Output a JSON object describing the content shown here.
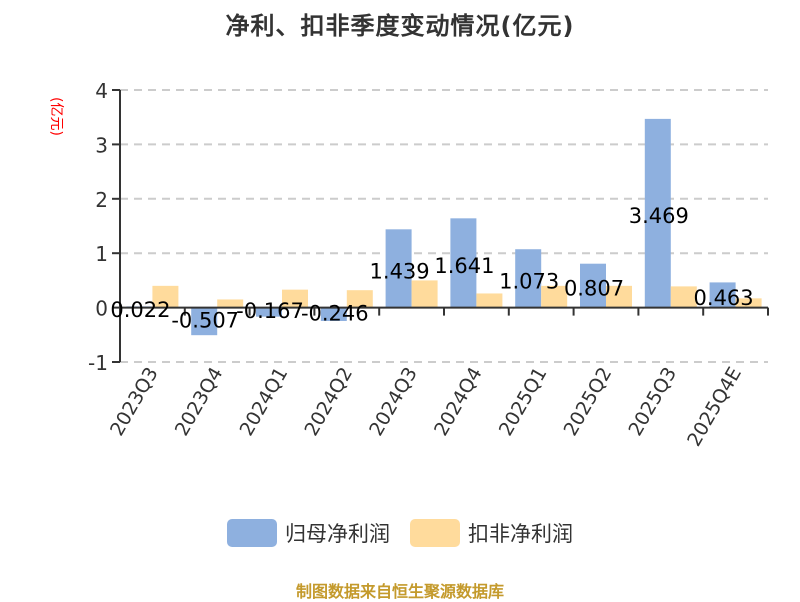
{
  "title": "净利、扣非季度变动情况(亿元)",
  "y_axis_unit": "(亿元)",
  "legend": [
    {
      "name": "归母净利润",
      "color": "#8eb0df"
    },
    {
      "name": "扣非净利润",
      "color": "#ffdb9c"
    }
  ],
  "source": "制图数据来自恒生聚源数据库",
  "chart_data": {
    "type": "bar",
    "title": "净利、扣非季度变动情况(亿元)",
    "xlabel": "",
    "ylabel": "(亿元)",
    "ylim": [
      -1,
      4
    ],
    "yticks": [
      -1,
      0,
      1,
      2,
      3,
      4
    ],
    "grid": "horizontal-dashed",
    "legend_position": "bottom",
    "categories": [
      "2023Q3",
      "2023Q4",
      "2024Q1",
      "2024Q2",
      "2024Q3",
      "2024Q4",
      "2025Q1",
      "2025Q2",
      "2025Q3",
      "2025Q4E"
    ],
    "series": [
      {
        "name": "归母净利润",
        "color": "#8eb0df",
        "values": [
          0.022,
          -0.507,
          -0.167,
          -0.246,
          1.439,
          1.641,
          1.073,
          0.807,
          3.469,
          0.463
        ],
        "labels": [
          "0.022",
          "-0.507",
          "-0.167",
          "-0.246",
          "1.439",
          "1.641",
          "1.073",
          "0.807",
          "3.469",
          "0.463"
        ]
      },
      {
        "name": "扣非净利润",
        "color": "#ffdb9c",
        "values": [
          0.4,
          0.15,
          0.33,
          0.32,
          0.5,
          0.26,
          0.4,
          0.4,
          0.39,
          0.17
        ]
      }
    ]
  }
}
